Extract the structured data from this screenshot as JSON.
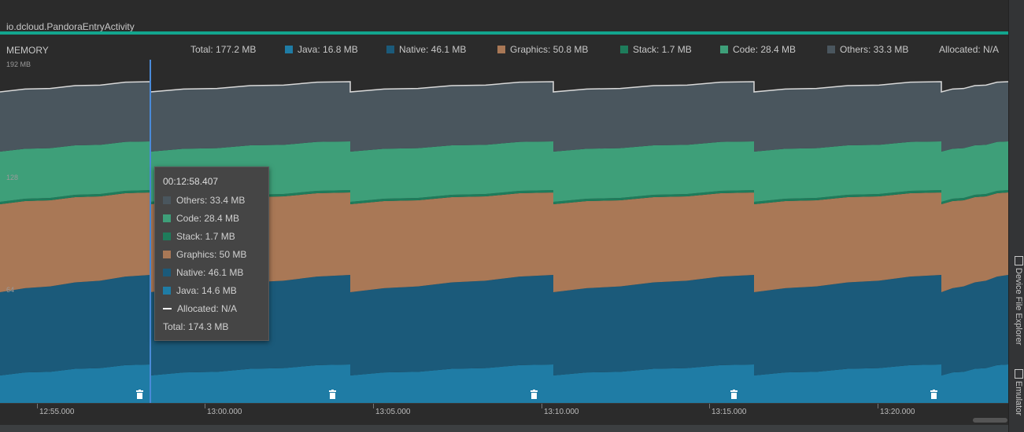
{
  "activity": {
    "label": "io.dcloud.PandoraEntryActivity"
  },
  "memory": {
    "title": "MEMORY"
  },
  "legend": {
    "total": "Total: 177.2 MB",
    "items": [
      {
        "label": "Java: 16.8 MB",
        "color": "#1f7ca5"
      },
      {
        "label": "Native: 46.1 MB",
        "color": "#1b5a7a"
      },
      {
        "label": "Graphics: 50.8 MB",
        "color": "#a97856"
      },
      {
        "label": "Stack: 1.7 MB",
        "color": "#1e7c5b"
      },
      {
        "label": "Code: 28.4 MB",
        "color": "#3e9f79"
      },
      {
        "label": "Others: 33.3 MB",
        "color": "#4a565e"
      }
    ],
    "allocated": "Allocated: N/A"
  },
  "y_axis": {
    "ticks": [
      "192 MB",
      "128",
      "64"
    ]
  },
  "tooltip": {
    "time": "00:12:58.407",
    "rows": [
      {
        "label": "Others: 33.4 MB",
        "color": "#4a565e",
        "kind": "swatch"
      },
      {
        "label": "Code: 28.4 MB",
        "color": "#3e9f79",
        "kind": "swatch"
      },
      {
        "label": "Stack: 1.7 MB",
        "color": "#1e7c5b",
        "kind": "swatch"
      },
      {
        "label": "Graphics: 50 MB",
        "color": "#a97856",
        "kind": "swatch"
      },
      {
        "label": "Native: 46.1 MB",
        "color": "#1b5a7a",
        "kind": "swatch"
      },
      {
        "label": "Java: 14.6 MB",
        "color": "#1f7ca5",
        "kind": "swatch"
      },
      {
        "label": "Allocated: N/A",
        "color": "#ffffff",
        "kind": "dash"
      }
    ],
    "total": "Total: 174.3 MB"
  },
  "timeline": {
    "labels": [
      "12:55.000",
      "13:00.000",
      "13:05.000",
      "13:10.000",
      "13:15.000",
      "13:20.000"
    ]
  },
  "side_panel": {
    "tabs": [
      "Device File Explorer",
      "Emulator"
    ]
  },
  "gc_events": {
    "count": 5,
    "icon": "trash-icon"
  },
  "chart_data": {
    "type": "area",
    "stacked": true,
    "ylabel": "",
    "y_ticks": [
      "192 MB",
      "128",
      "64"
    ],
    "x_ticks": [
      "12:55.000",
      "13:00.000",
      "13:05.000",
      "13:10.000",
      "13:15.000",
      "13:20.000"
    ],
    "series": [
      {
        "name": "Java",
        "color": "#1f7ca5"
      },
      {
        "name": "Native",
        "color": "#1b5a7a"
      },
      {
        "name": "Graphics",
        "color": "#a97856"
      },
      {
        "name": "Stack",
        "color": "#1e7c5b"
      },
      {
        "name": "Code",
        "color": "#3e9f79"
      },
      {
        "name": "Others",
        "color": "#4a565e"
      }
    ],
    "sawtooth_pattern": "memory rises steadily then drops after each GC event",
    "gc_event_times": [
      "12:57.5",
      "13:03.2",
      "13:09.2",
      "13:15.2",
      "13:21.1"
    ]
  }
}
